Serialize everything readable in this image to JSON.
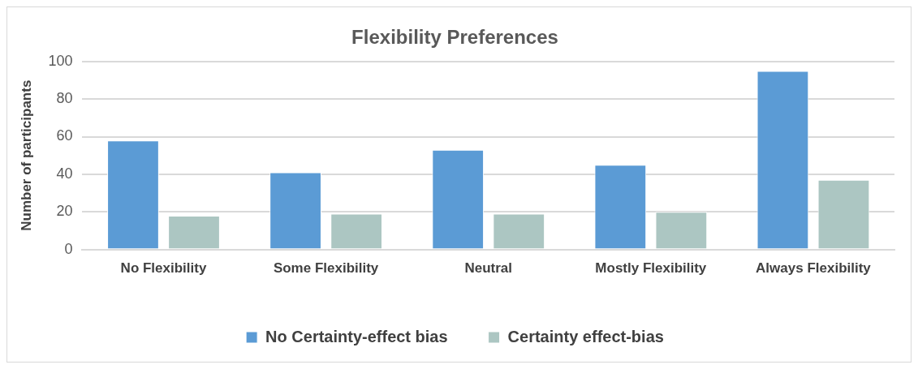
{
  "chart_data": {
    "type": "bar",
    "title": "Flexibility Preferences",
    "ylabel": "Number of participants",
    "categories": [
      "No Flexibility",
      "Some Flexibility",
      "Neutral",
      "Mostly Flexibility",
      "Always Flexibility"
    ],
    "series": [
      {
        "name": "No Certainty-effect bias",
        "color": "#5b9bd5",
        "values": [
          58,
          41,
          53,
          45,
          95
        ]
      },
      {
        "name": "Certainty effect-bias",
        "color": "#acc6c2",
        "values": [
          18,
          19,
          19,
          20,
          37
        ]
      }
    ],
    "ylim": [
      0,
      100
    ],
    "yticks": [
      0,
      20,
      40,
      60,
      80,
      100
    ],
    "grid": "y",
    "legend": "bottom"
  }
}
